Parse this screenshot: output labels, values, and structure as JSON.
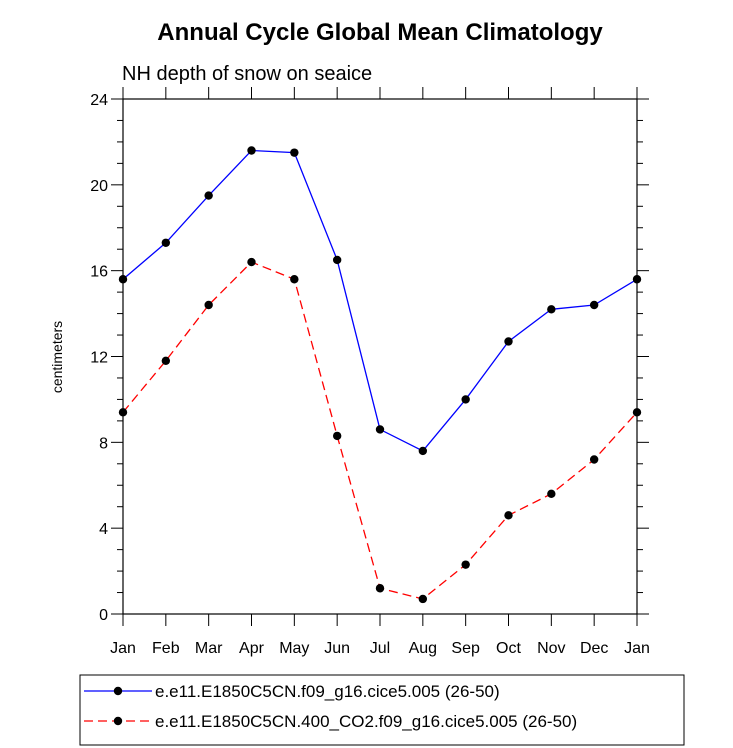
{
  "chart_data": {
    "type": "line",
    "title": "Annual Cycle Global Mean Climatology",
    "subtitle": "NH depth of snow on seaice",
    "xlabel": "",
    "ylabel": "centimeters",
    "categories": [
      "Jan",
      "Feb",
      "Mar",
      "Apr",
      "May",
      "Jun",
      "Jul",
      "Aug",
      "Sep",
      "Oct",
      "Nov",
      "Dec",
      "Jan"
    ],
    "ylim": [
      0,
      24
    ],
    "yticks": [
      "0",
      "4",
      "8",
      "12",
      "16",
      "20",
      "24"
    ],
    "yminor_step": 1,
    "grid": false,
    "legend_position": "bottom",
    "series": [
      {
        "name": "e.e11.E1850C5CN.f09_g16.cice5.005 (26-50)",
        "color": "#0000ff",
        "dash": "solid",
        "values": [
          15.6,
          17.3,
          19.5,
          21.6,
          21.5,
          16.5,
          8.6,
          7.6,
          10.0,
          12.7,
          14.2,
          14.4,
          15.6
        ]
      },
      {
        "name": "e.e11.E1850C5CN.400_CO2.f09_g16.cice5.005 (26-50)",
        "color": "#ff0000",
        "dash": "dashed",
        "values": [
          9.4,
          11.8,
          14.4,
          16.4,
          15.6,
          8.3,
          1.2,
          0.7,
          2.3,
          4.6,
          5.6,
          7.2,
          9.4
        ]
      }
    ]
  }
}
